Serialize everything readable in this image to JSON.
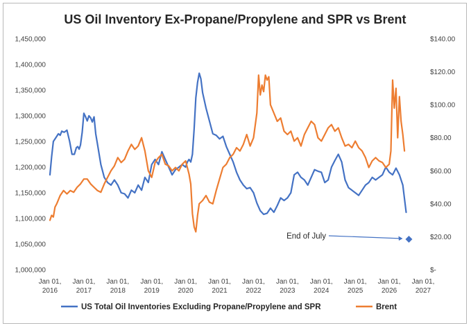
{
  "chart_data": {
    "type": "line",
    "title": "US Oil Inventory Ex-Propane/Propylene and SPR vs Brent",
    "y_left": {
      "range": [
        1000000,
        1450000
      ],
      "ticks": [
        1000000,
        1050000,
        1100000,
        1150000,
        1200000,
        1250000,
        1300000,
        1350000,
        1400000,
        1450000
      ],
      "tick_labels": [
        "1,000,000",
        "1,050,000",
        "1,100,000",
        "1,150,000",
        "1,200,000",
        "1,250,000",
        "1,300,000",
        "1,350,000",
        "1,400,000",
        "1,450,000"
      ]
    },
    "y_right": {
      "range": [
        0,
        140
      ],
      "ticks": [
        0,
        20,
        40,
        60,
        80,
        100,
        120,
        140
      ],
      "tick_labels": [
        "$-",
        "$20.00",
        "$40.00",
        "$60.00",
        "$80.00",
        "$100.00",
        "$120.00",
        "$140.00"
      ]
    },
    "x_axis": {
      "range": [
        2016.0,
        2027.0
      ],
      "ticks": [
        2016,
        2017,
        2018,
        2019,
        2020,
        2021,
        2022,
        2023,
        2024,
        2025,
        2026,
        2027
      ],
      "tick_labels": [
        [
          "Jan 01,",
          "2016"
        ],
        [
          "Jan 01,",
          "2017"
        ],
        [
          "Jan 01,",
          "2018"
        ],
        [
          "Jan 01,",
          "2019"
        ],
        [
          "Jan 01,",
          "2020"
        ],
        [
          "Jan 01,",
          "2021"
        ],
        [
          "Jan 01,",
          "2022"
        ],
        [
          "Jan 01,",
          "2023"
        ],
        [
          "Jan 01,",
          "2024"
        ],
        [
          "Jan 01,",
          "2025"
        ],
        [
          "Jan 01,",
          "2026"
        ],
        [
          "Jan 01,",
          "2027"
        ]
      ]
    },
    "grid": false,
    "legend_position": "bottom",
    "series": [
      {
        "name": "US Total Oil Inventories Excluding Propane/Propylene and SPR",
        "axis": "left",
        "color": "#4472c4",
        "x": [
          2016.0,
          2016.05,
          2016.1,
          2016.18,
          2016.25,
          2016.3,
          2016.35,
          2016.42,
          2016.5,
          2016.58,
          2016.65,
          2016.72,
          2016.78,
          2016.82,
          2016.86,
          2016.9,
          2016.95,
          2017.0,
          2017.05,
          2017.1,
          2017.15,
          2017.2,
          2017.25,
          2017.3,
          2017.35,
          2017.4,
          2017.5,
          2017.6,
          2017.7,
          2017.8,
          2017.9,
          2018.0,
          2018.1,
          2018.2,
          2018.3,
          2018.4,
          2018.5,
          2018.6,
          2018.7,
          2018.8,
          2018.9,
          2019.0,
          2019.1,
          2019.2,
          2019.3,
          2019.4,
          2019.5,
          2019.6,
          2019.7,
          2019.8,
          2019.9,
          2020.0,
          2020.05,
          2020.1,
          2020.15,
          2020.2,
          2020.25,
          2020.3,
          2020.35,
          2020.4,
          2020.45,
          2020.5,
          2020.6,
          2020.7,
          2020.8,
          2020.9,
          2021.0,
          2021.1,
          2021.2,
          2021.3,
          2021.4,
          2021.5,
          2021.6,
          2021.7,
          2021.8,
          2021.9,
          2022.0,
          2022.1,
          2022.2,
          2022.3,
          2022.4,
          2022.5,
          2022.6,
          2022.7,
          2022.8,
          2022.9,
          2023.0,
          2023.1,
          2023.2,
          2023.3,
          2023.4,
          2023.5,
          2023.6,
          2023.7,
          2023.8,
          2023.9,
          2024.0,
          2024.1,
          2024.2,
          2024.3,
          2024.4,
          2024.5,
          2024.6,
          2024.7,
          2024.8,
          2024.9,
          2025.0,
          2025.1,
          2025.2,
          2025.3,
          2025.4,
          2025.5,
          2025.6,
          2025.7,
          2025.8,
          2025.9,
          2026.0,
          2026.1,
          2026.2,
          2026.3,
          2026.4,
          2026.5
        ],
        "values": [
          1185000,
          1220000,
          1250000,
          1258000,
          1265000,
          1262000,
          1270000,
          1268000,
          1272000,
          1250000,
          1225000,
          1225000,
          1238000,
          1240000,
          1235000,
          1243000,
          1268000,
          1305000,
          1298000,
          1290000,
          1300000,
          1296000,
          1288000,
          1298000,
          1265000,
          1245000,
          1205000,
          1180000,
          1170000,
          1165000,
          1175000,
          1165000,
          1150000,
          1148000,
          1140000,
          1155000,
          1150000,
          1165000,
          1155000,
          1180000,
          1170000,
          1205000,
          1215000,
          1205000,
          1230000,
          1215000,
          1200000,
          1185000,
          1195000,
          1200000,
          1205000,
          1200000,
          1210000,
          1215000,
          1210000,
          1225000,
          1275000,
          1335000,
          1365000,
          1383000,
          1372000,
          1345000,
          1315000,
          1290000,
          1265000,
          1262000,
          1255000,
          1260000,
          1240000,
          1225000,
          1210000,
          1190000,
          1175000,
          1165000,
          1158000,
          1160000,
          1150000,
          1130000,
          1115000,
          1108000,
          1110000,
          1120000,
          1112000,
          1125000,
          1140000,
          1135000,
          1140000,
          1150000,
          1185000,
          1190000,
          1180000,
          1175000,
          1165000,
          1180000,
          1195000,
          1192000,
          1190000,
          1170000,
          1175000,
          1200000,
          1213000,
          1225000,
          1210000,
          1175000,
          1160000,
          1155000,
          1150000,
          1145000,
          1155000,
          1165000,
          1170000,
          1180000,
          1175000,
          1180000,
          1185000,
          1200000,
          1190000,
          1185000,
          1198000,
          1185000,
          1165000,
          1112000
        ]
      },
      {
        "name": "Brent",
        "axis": "right",
        "color": "#ed7d31",
        "x": [
          2016.0,
          2016.05,
          2016.1,
          2016.15,
          2016.2,
          2016.3,
          2016.4,
          2016.5,
          2016.6,
          2016.7,
          2016.8,
          2016.9,
          2017.0,
          2017.1,
          2017.2,
          2017.3,
          2017.4,
          2017.5,
          2017.6,
          2017.7,
          2017.8,
          2017.9,
          2018.0,
          2018.1,
          2018.2,
          2018.3,
          2018.4,
          2018.5,
          2018.6,
          2018.7,
          2018.8,
          2018.9,
          2019.0,
          2019.1,
          2019.2,
          2019.3,
          2019.4,
          2019.5,
          2019.6,
          2019.7,
          2019.8,
          2019.9,
          2020.0,
          2020.1,
          2020.15,
          2020.2,
          2020.25,
          2020.3,
          2020.35,
          2020.4,
          2020.5,
          2020.6,
          2020.7,
          2020.8,
          2020.9,
          2021.0,
          2021.1,
          2021.2,
          2021.3,
          2021.4,
          2021.5,
          2021.6,
          2021.7,
          2021.8,
          2021.9,
          2022.0,
          2022.1,
          2022.15,
          2022.2,
          2022.25,
          2022.3,
          2022.35,
          2022.4,
          2022.45,
          2022.5,
          2022.6,
          2022.7,
          2022.8,
          2022.9,
          2023.0,
          2023.1,
          2023.2,
          2023.3,
          2023.4,
          2023.5,
          2023.6,
          2023.7,
          2023.8,
          2023.9,
          2024.0,
          2024.1,
          2024.2,
          2024.3,
          2024.4,
          2024.5,
          2024.6,
          2024.7,
          2024.8,
          2024.9,
          2025.0,
          2025.1,
          2025.2,
          2025.3,
          2025.4,
          2025.5,
          2025.6,
          2025.7,
          2025.8,
          2025.9,
          2026.0,
          2026.05,
          2026.1,
          2026.15,
          2026.2,
          2026.25,
          2026.3,
          2026.35,
          2026.4,
          2026.45
        ],
        "values": [
          30,
          33,
          32,
          38,
          40,
          45,
          48,
          46,
          48,
          47,
          50,
          52,
          55,
          55,
          52,
          50,
          48,
          47,
          52,
          56,
          60,
          63,
          68,
          65,
          67,
          72,
          76,
          73,
          75,
          80,
          72,
          60,
          56,
          65,
          68,
          70,
          64,
          63,
          60,
          62,
          60,
          64,
          66,
          58,
          52,
          34,
          26,
          23,
          33,
          40,
          42,
          45,
          41,
          40,
          48,
          55,
          62,
          64,
          68,
          70,
          74,
          72,
          76,
          82,
          75,
          80,
          95,
          118,
          106,
          112,
          108,
          118,
          115,
          117,
          100,
          95,
          90,
          92,
          84,
          82,
          84,
          78,
          80,
          75,
          82,
          86,
          90,
          88,
          80,
          78,
          82,
          86,
          88,
          84,
          86,
          80,
          75,
          76,
          74,
          78,
          74,
          72,
          68,
          62,
          66,
          68,
          66,
          65,
          62,
          64,
          72,
          115,
          98,
          110,
          80,
          105,
          90,
          82,
          72
        ]
      }
    ],
    "annotation": {
      "text": "End of July",
      "x": 2026.58,
      "y_right": 18.5,
      "marker_color": "#4472c4"
    }
  }
}
